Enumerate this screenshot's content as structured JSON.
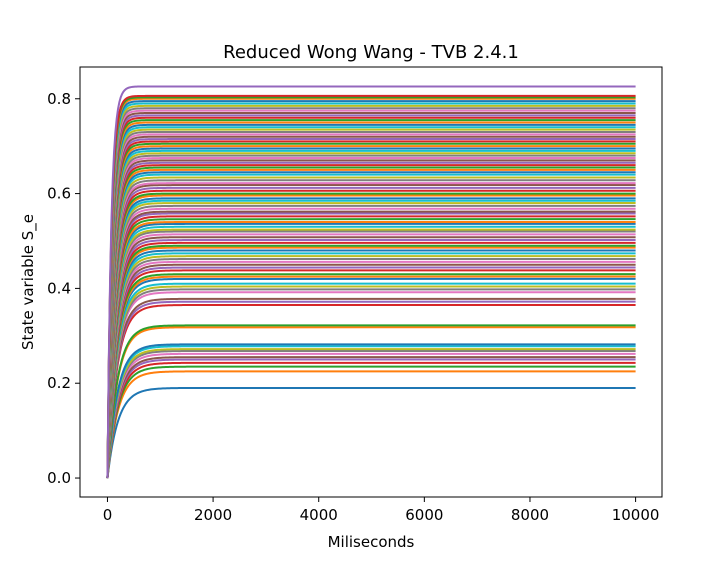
{
  "chart_data": {
    "type": "line",
    "title": "Reduced Wong Wang - TVB 2.4.1",
    "xlabel": "Miliseconds",
    "ylabel": "State variable S_e",
    "xlim": [
      -520,
      10500
    ],
    "ylim": [
      -0.04,
      0.867
    ],
    "xticks": [
      0,
      2000,
      4000,
      6000,
      8000,
      10000
    ],
    "xtick_labels": [
      "0",
      "2000",
      "4000",
      "6000",
      "8000",
      "10000"
    ],
    "yticks": [
      0.0,
      0.2,
      0.4,
      0.6,
      0.8
    ],
    "ytick_labels": [
      "0.0",
      "0.2",
      "0.4",
      "0.6",
      "0.8"
    ],
    "grid": false,
    "legend": "none",
    "x_start": 0,
    "x_end": 10000,
    "initial_value": 0.0,
    "palette": [
      "#1f77b4",
      "#ff7f0e",
      "#2ca02c",
      "#d62728",
      "#9467bd",
      "#8c564b",
      "#e377c2",
      "#7f7f7f",
      "#bcbd22",
      "#17becf"
    ],
    "series_steady_state": [
      0.19,
      0.225,
      0.235,
      0.243,
      0.25,
      0.255,
      0.262,
      0.268,
      0.272,
      0.278,
      0.282,
      0.318,
      0.322,
      0.365,
      0.372,
      0.378,
      0.392,
      0.398,
      0.404,
      0.41,
      0.42,
      0.425,
      0.43,
      0.438,
      0.444,
      0.45,
      0.456,
      0.462,
      0.468,
      0.474,
      0.48,
      0.486,
      0.49,
      0.496,
      0.502,
      0.508,
      0.514,
      0.52,
      0.524,
      0.53,
      0.536,
      0.54,
      0.546,
      0.552,
      0.558,
      0.562,
      0.568,
      0.574,
      0.58,
      0.585,
      0.59,
      0.596,
      0.6,
      0.606,
      0.612,
      0.618,
      0.622,
      0.628,
      0.634,
      0.64,
      0.645,
      0.65,
      0.655,
      0.66,
      0.665,
      0.67,
      0.675,
      0.68,
      0.685,
      0.69,
      0.695,
      0.7,
      0.705,
      0.71,
      0.715,
      0.72,
      0.725,
      0.73,
      0.735,
      0.74,
      0.745,
      0.75,
      0.755,
      0.76,
      0.765,
      0.77,
      0.775,
      0.78,
      0.785,
      0.79,
      0.795,
      0.8,
      0.803,
      0.806,
      0.826
    ]
  }
}
